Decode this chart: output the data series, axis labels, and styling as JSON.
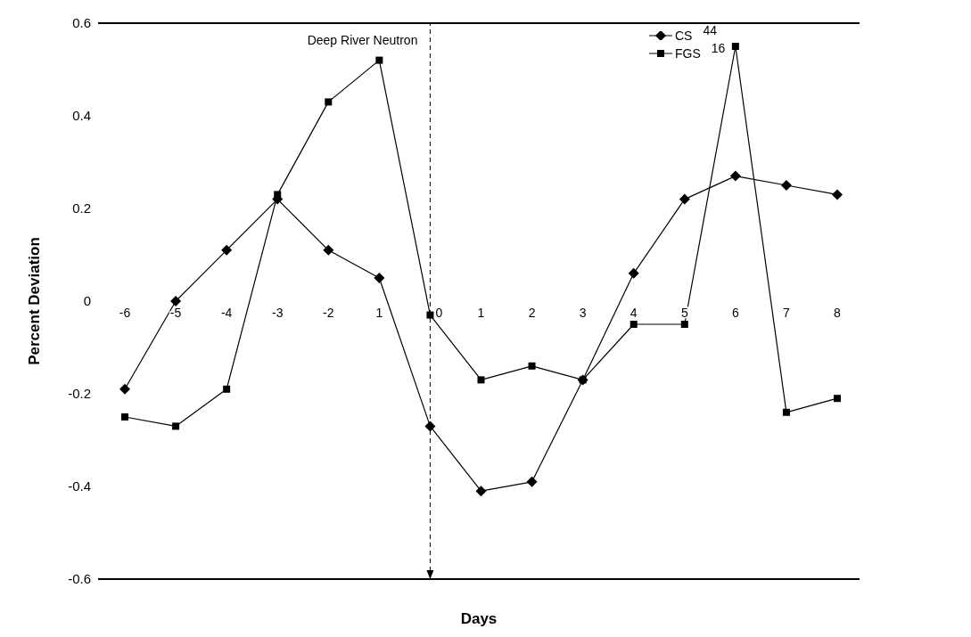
{
  "chart_data": {
    "type": "line",
    "xlabel": "Days",
    "ylabel": "Percent Deviation",
    "categories": [
      "-6",
      "-5",
      "-4",
      "-3",
      "-2",
      "1",
      "0",
      "1",
      "2",
      "3",
      "4",
      "5",
      "6",
      "7",
      "8"
    ],
    "series": [
      {
        "name": "CS",
        "color": "#000000",
        "marker": "diamond",
        "values": [
          -0.19,
          0,
          0.11,
          0.22,
          0.11,
          0.05,
          -0.27,
          -0.41,
          -0.39,
          -0.17,
          0.06,
          0.22,
          0.27,
          0.25,
          0.23
        ]
      },
      {
        "name": "FGS",
        "color": "#000000",
        "marker": "square",
        "values": [
          -0.25,
          -0.27,
          -0.19,
          0.23,
          0.43,
          0.52,
          -0.03,
          -0.17,
          -0.14,
          -0.17,
          -0.05,
          -0.05,
          0.55,
          -0.24,
          -0.21
        ]
      }
    ],
    "annotations": [
      "44",
      "16"
    ],
    "ref_lines": [
      {
        "axis": "x",
        "value": "0",
        "label": "Deep River Neutron",
        "line_style": "dashed"
      }
    ],
    "ylim": [
      -0.6,
      0.6
    ],
    "yticks": [
      -0.6,
      -0.4,
      -0.2,
      0,
      0.2,
      0.4,
      0.6
    ],
    "grid": false,
    "legend": "top right",
    "line_style": "solid"
  }
}
